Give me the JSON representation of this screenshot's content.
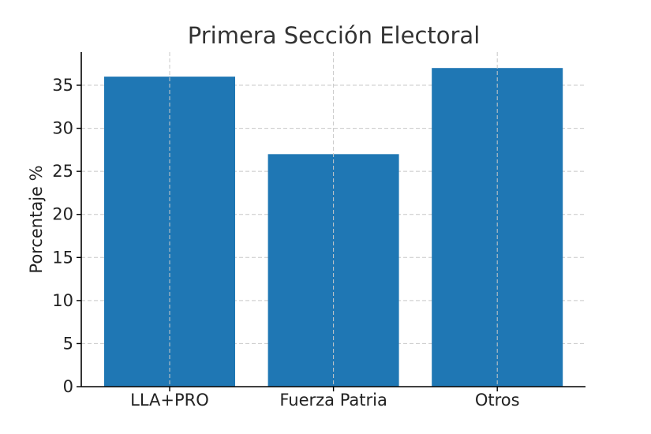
{
  "chart_data": {
    "type": "bar",
    "title": "Primera Sección Electoral",
    "xlabel": "",
    "ylabel": "Porcentaje %",
    "categories": [
      "LLA+PRO",
      "Fuerza Patria",
      "Otros"
    ],
    "values": [
      36,
      27,
      37
    ],
    "ylim": [
      0,
      38.85
    ],
    "yticks": [
      0,
      5,
      10,
      15,
      20,
      25,
      30,
      35
    ],
    "grid": true,
    "bar_color": "#1f77b4",
    "grid_color": "#c8c8c8"
  }
}
